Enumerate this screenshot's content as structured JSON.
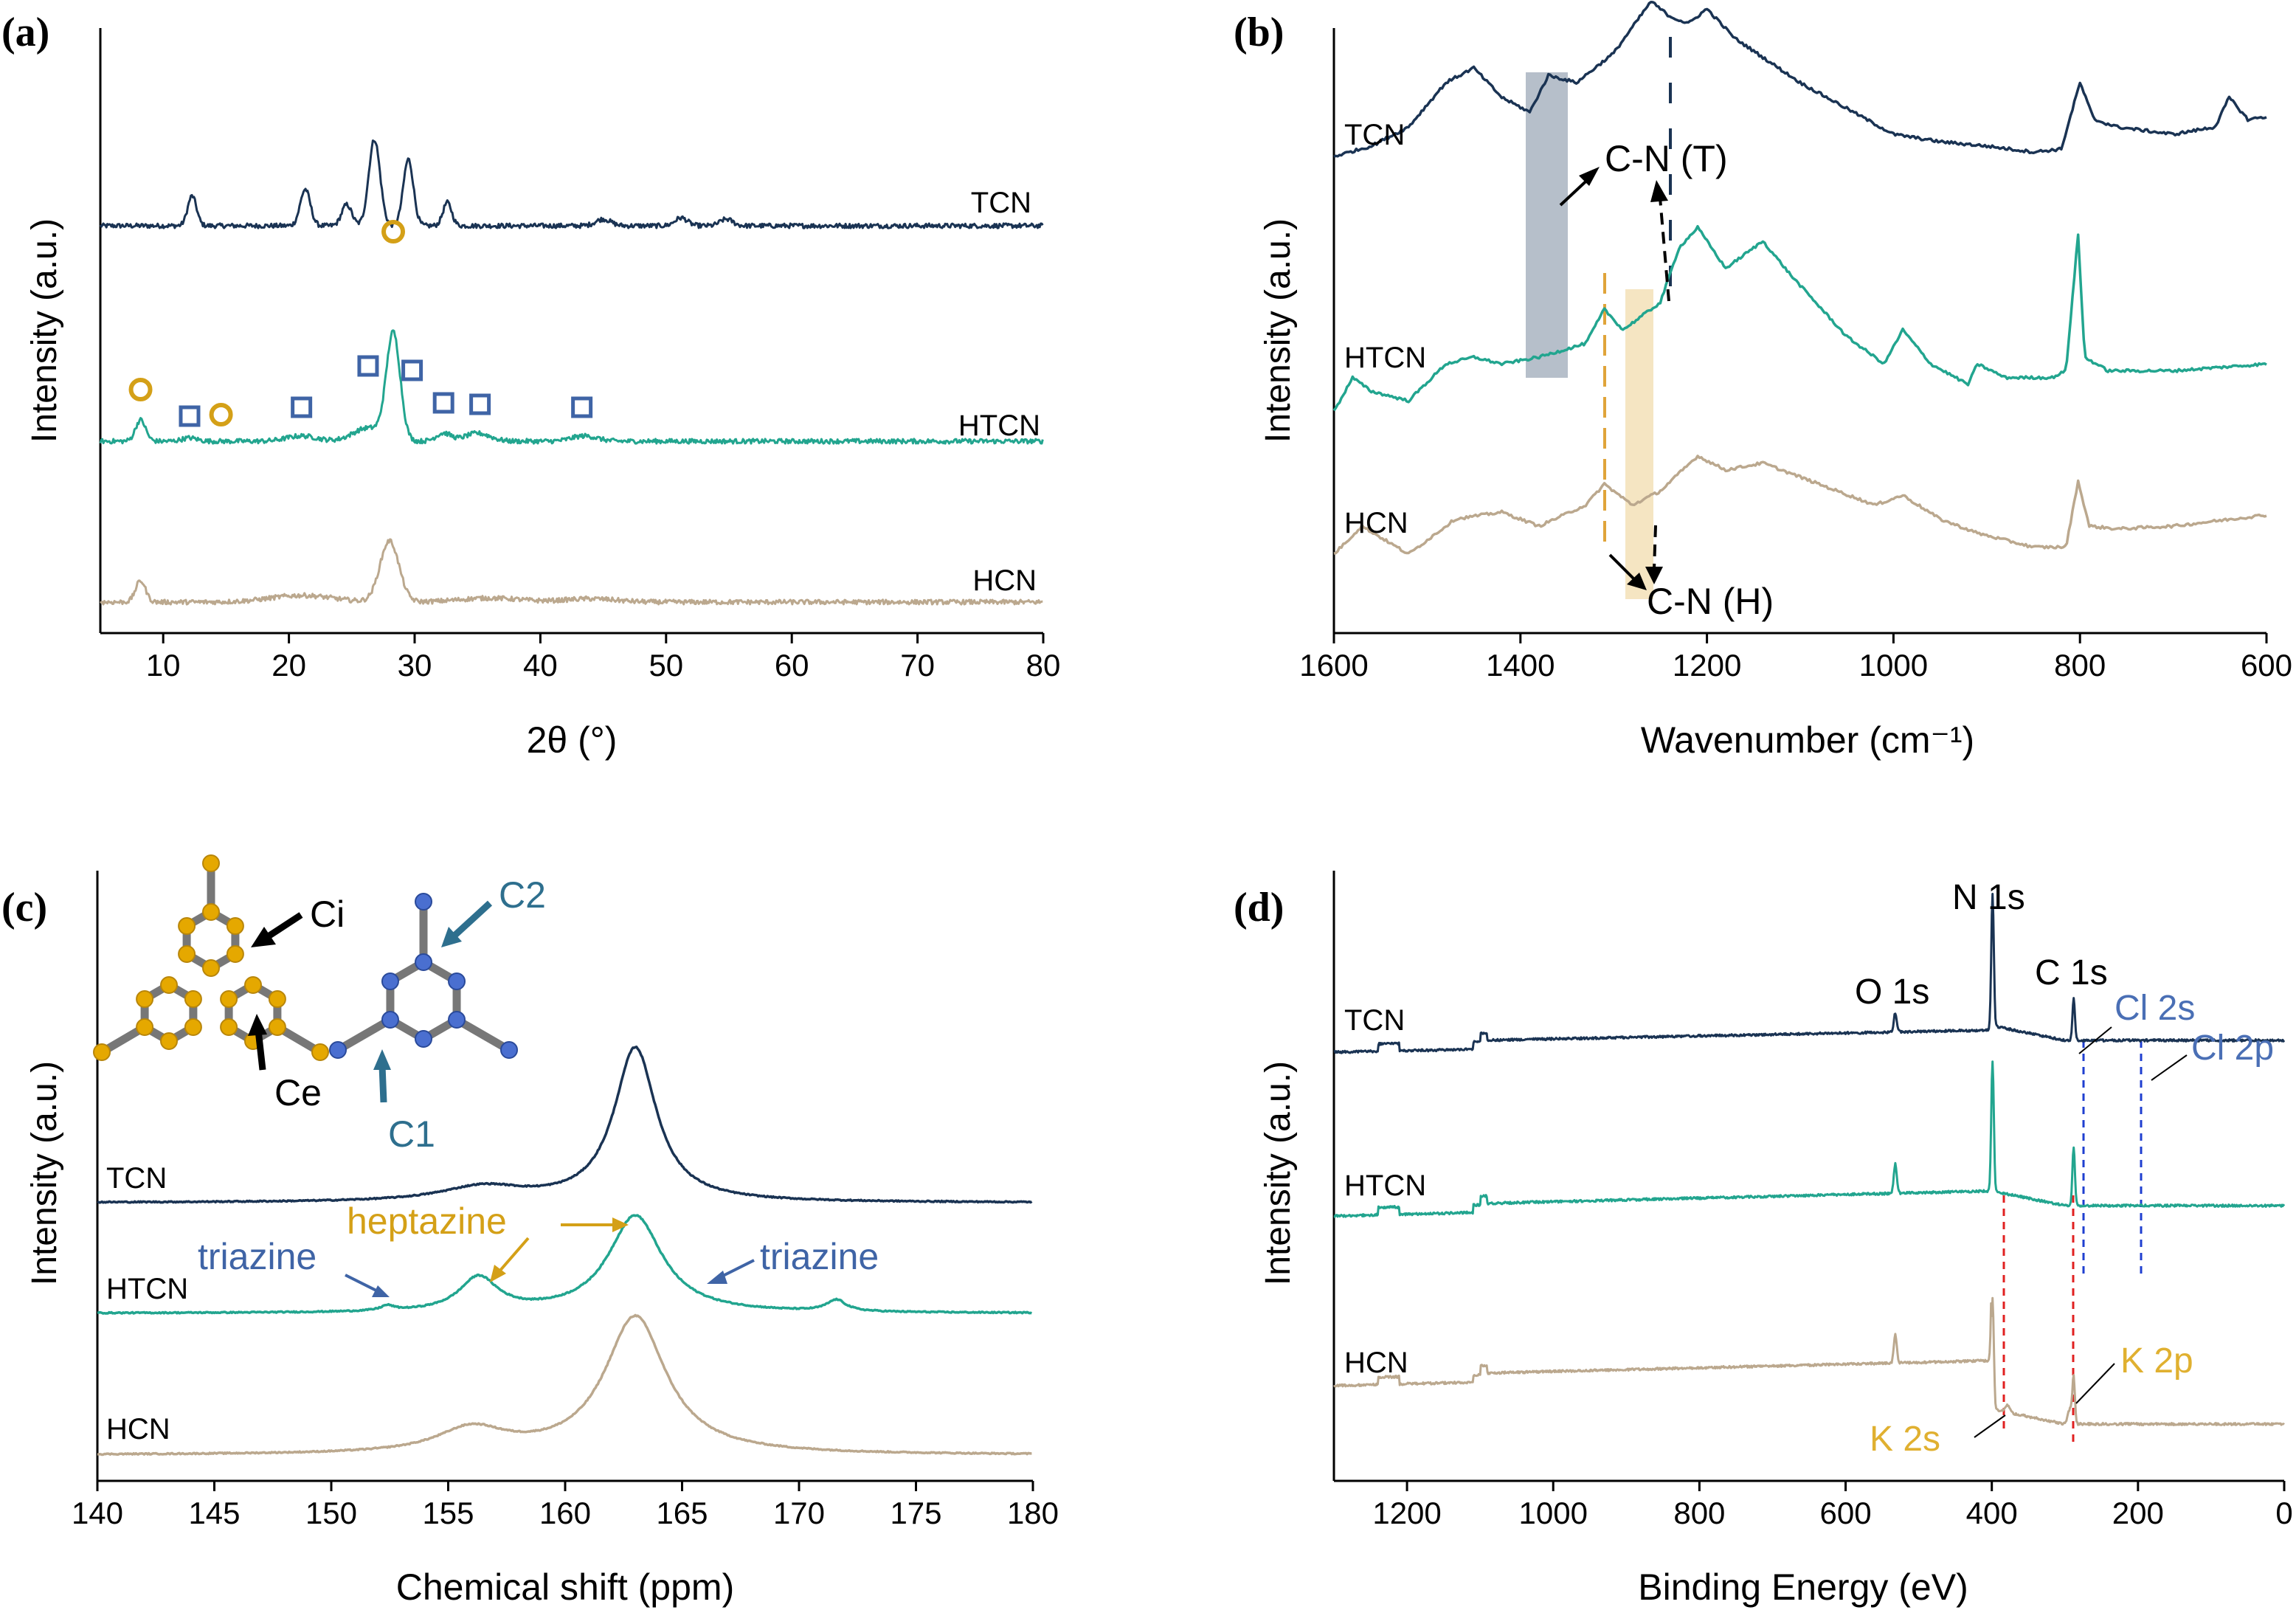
{
  "colors": {
    "TCN": "#1a3353",
    "HTCN": "#22a58f",
    "HCN": "#bba88e",
    "gold": "#d4a017",
    "blue_marker": "#3f64a6",
    "steelblue": "#2e6f8e",
    "cl_blue": "#4a6fb5",
    "gray_band": "#9eaab8",
    "tan_band": "#f2dcae",
    "red_dash": "#e02020",
    "blue_dash": "#1f3fd0"
  },
  "chart_data": [
    {
      "panel": "(a)",
      "type": "line",
      "xlabel": "2θ (°)",
      "ylabel": "Intensity (a.u.)",
      "xlim": [
        5,
        80
      ],
      "xticks": [
        10,
        20,
        30,
        40,
        50,
        60,
        70,
        80
      ],
      "series": [
        {
          "name": "TCN",
          "baseline": 0.82,
          "peaks": [
            [
              12.3,
              0.45,
              0.35
            ],
            [
              21.3,
              0.55,
              0.4
            ],
            [
              24.6,
              0.32,
              0.4
            ],
            [
              26.8,
              1.3,
              0.45
            ],
            [
              29.5,
              1.0,
              0.4
            ],
            [
              32.6,
              0.35,
              0.35
            ],
            [
              45.0,
              0.1,
              0.6
            ],
            [
              51.2,
              0.12,
              0.5
            ],
            [
              54.8,
              0.1,
              0.5
            ]
          ]
        },
        {
          "name": "HTCN",
          "baseline": 0.45,
          "peaks": [
            [
              8.2,
              0.32,
              0.4
            ],
            [
              12.1,
              0.05,
              0.6
            ],
            [
              21.0,
              0.08,
              1.2
            ],
            [
              26.3,
              0.2,
              1.2
            ],
            [
              28.3,
              1.6,
              0.55
            ],
            [
              32.3,
              0.12,
              0.6
            ],
            [
              35.0,
              0.12,
              1.0
            ],
            [
              43.5,
              0.08,
              1.0
            ]
          ]
        },
        {
          "name": "HCN",
          "baseline": 0.0,
          "peaks": [
            [
              8.2,
              0.32,
              0.4
            ],
            [
              21.0,
              0.1,
              2.5
            ],
            [
              28.0,
              0.92,
              0.75
            ],
            [
              36.0,
              0.06,
              2.5
            ],
            [
              44.0,
              0.05,
              2.0
            ]
          ]
        }
      ],
      "circle_markers": [
        8.2,
        14.6,
        28.3
      ],
      "square_markers": [
        12.1,
        21.0,
        26.3,
        29.8,
        32.3,
        35.2,
        43.3
      ]
    },
    {
      "panel": "(b)",
      "type": "line",
      "xlabel": "Wavenumber (cm⁻¹)",
      "ylabel": "Intensity (a.u.)",
      "xlim": [
        1600,
        600
      ],
      "xticks": [
        1600,
        1400,
        1200,
        1000,
        800,
        600
      ],
      "series": [
        {
          "name": "TCN"
        },
        {
          "name": "HTCN"
        },
        {
          "name": "HCN"
        }
      ],
      "annotations": {
        "triazine_band": "C-N (T)",
        "heptazine_band": "C-N (H)"
      },
      "triazine_band_range": [
        1395,
        1360
      ],
      "heptazine_band_range": [
        1280,
        1260
      ]
    },
    {
      "panel": "(c)",
      "type": "line",
      "xlabel": "Chemical shift (ppm)",
      "ylabel": "Intensity (a.u.)",
      "xlim": [
        140,
        180
      ],
      "xticks": [
        140,
        145,
        150,
        155,
        160,
        165,
        170,
        175,
        180
      ],
      "series": [
        {
          "name": "TCN",
          "peaks": [
            [
              163.0,
              1.9,
              1.1
            ],
            [
              156.5,
              0.18,
              2.2
            ]
          ]
        },
        {
          "name": "HTCN",
          "peaks": [
            [
              163.0,
              1.2,
              1.4
            ],
            [
              156.3,
              0.42,
              1.0
            ],
            [
              152.4,
              0.06,
              0.35
            ],
            [
              171.6,
              0.14,
              0.5
            ]
          ]
        },
        {
          "name": "HCN",
          "peaks": [
            [
              163.0,
              1.7,
              1.6
            ],
            [
              156.0,
              0.3,
              1.8
            ]
          ]
        }
      ],
      "annotations": {
        "heptazine": "heptazine",
        "triazine_left": "triazine",
        "triazine_right": "triazine",
        "ci": "Ci",
        "ce": "Ce",
        "c1": "C1",
        "c2": "C2"
      }
    },
    {
      "panel": "(d)",
      "type": "line",
      "xlabel": "Binding Energy (eV)",
      "ylabel": "Intensity (a.u.)",
      "xlim": [
        1300,
        0
      ],
      "xticks": [
        1200,
        1000,
        800,
        600,
        400,
        200,
        0
      ],
      "series": [
        {
          "name": "TCN"
        },
        {
          "name": "HTCN"
        },
        {
          "name": "HCN"
        }
      ],
      "annotations": {
        "o1s": "O 1s",
        "n1s": "N 1s",
        "c1s": "C 1s",
        "cl2s": "Cl 2s",
        "cl2p": "Cl 2p",
        "k2s": "K 2s",
        "k2p": "K 2p"
      },
      "peak_positions": {
        "O 1s": 532,
        "N 1s": 399,
        "C 1s": 288,
        "Cl 2s": 270,
        "Cl 2p": 199,
        "K 2s": 378,
        "K 2p": 293
      }
    }
  ]
}
